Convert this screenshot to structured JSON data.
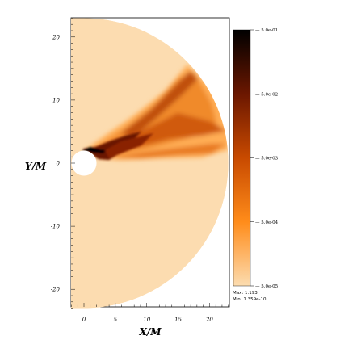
{
  "chart_data": {
    "type": "heatmap",
    "title": "",
    "xlabel": "X/M",
    "ylabel": "Y/M",
    "xlim": [
      -2,
      23
    ],
    "ylim": [
      -23,
      23
    ],
    "x_ticks": [
      0,
      5,
      10,
      15,
      20
    ],
    "y_ticks": [
      20,
      10,
      0,
      -10,
      -20
    ],
    "x_tick_labels": [
      "0",
      "5",
      "10",
      "15",
      "20"
    ],
    "y_tick_labels": [
      "20",
      "10",
      "0",
      "-10",
      "-20"
    ],
    "domain": {
      "shape": "half-annulus",
      "inner_radius": 2,
      "outer_radius": 23
    },
    "colorbar": {
      "scale": "log",
      "range": [
        5e-05,
        0.5
      ],
      "ticks": [
        "5.0e-01",
        "5.0e-02",
        "5.0e-03",
        "5.0e-04",
        "5.0e-05"
      ],
      "colors": {
        "high": "#000000",
        "upper_mid": "#6b1700",
        "mid": "#c84a00",
        "lower_mid": "#ff8c1a",
        "low": "#fcdcb0"
      }
    },
    "max_label": "Max: 1.193",
    "min_label": "Min: 1.359e-10",
    "background_color": "#fcdcb0"
  }
}
